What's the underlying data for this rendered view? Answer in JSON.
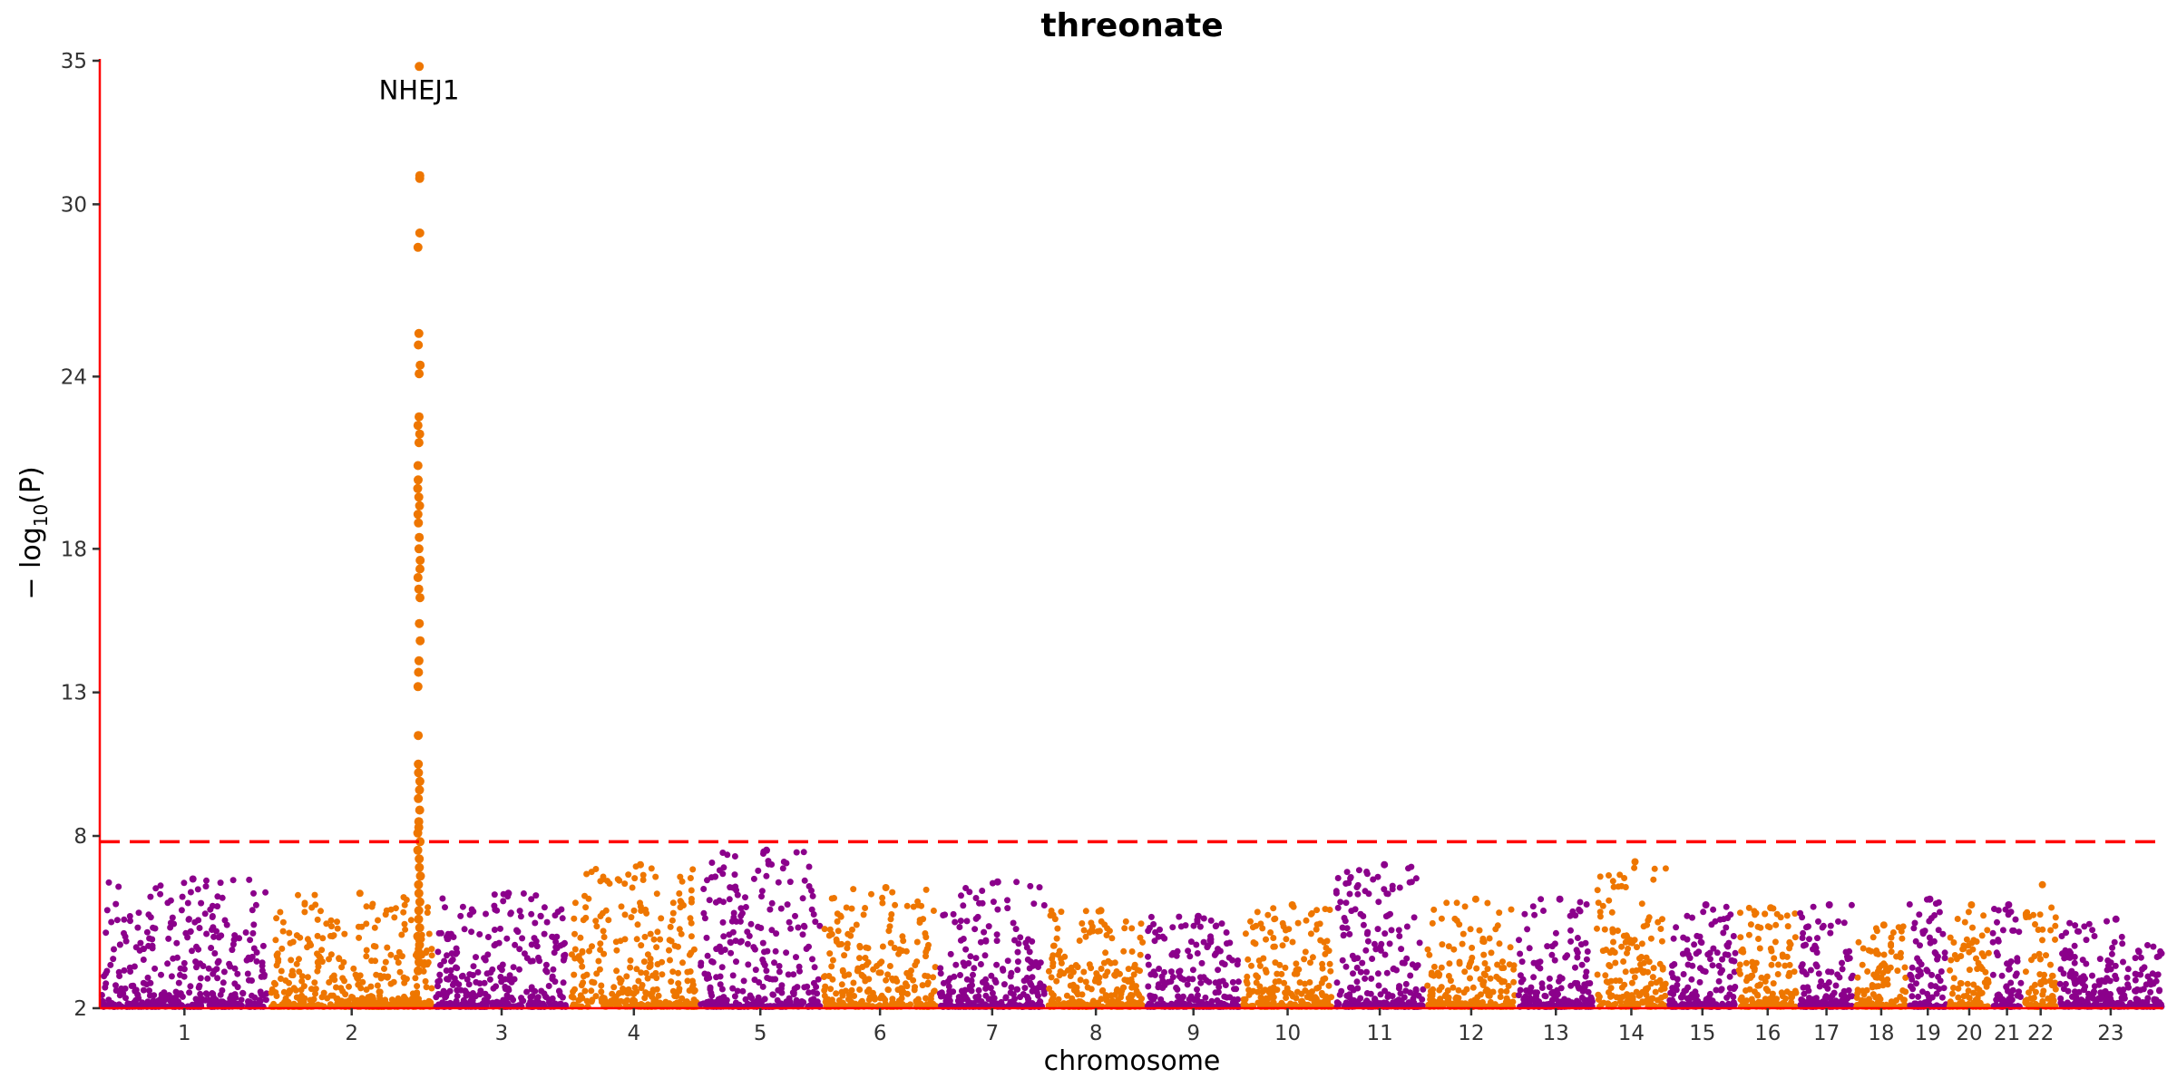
{
  "chart_data": {
    "type": "scatter",
    "subtype": "manhattan",
    "title": "threonate",
    "xlabel": "chromosome",
    "ylabel": "− log10(P)",
    "ylim": [
      2,
      35
    ],
    "yticks": [
      2,
      8,
      13,
      18,
      24,
      30,
      35
    ],
    "grid": false,
    "legend": "none",
    "colors": {
      "odd": "#8B008B",
      "even": "#EE7600",
      "axis": "#FF0000",
      "threshold": "#FF0000"
    },
    "threshold": 7.8,
    "chromosomes": [
      {
        "label": "1",
        "max": 6.5
      },
      {
        "label": "2",
        "max": 6.0
      },
      {
        "label": "3",
        "max": 6.0
      },
      {
        "label": "4",
        "max": 7.0
      },
      {
        "label": "5",
        "max": 7.5
      },
      {
        "label": "6",
        "max": 6.2
      },
      {
        "label": "7",
        "max": 6.4
      },
      {
        "label": "8",
        "max": 5.4
      },
      {
        "label": "9",
        "max": 5.2
      },
      {
        "label": "10",
        "max": 5.6
      },
      {
        "label": "11",
        "max": 7.0
      },
      {
        "label": "12",
        "max": 5.8
      },
      {
        "label": "13",
        "max": 5.8
      },
      {
        "label": "14",
        "max": 7.1
      },
      {
        "label": "15",
        "max": 5.6
      },
      {
        "label": "16",
        "max": 5.5
      },
      {
        "label": "17",
        "max": 5.6
      },
      {
        "label": "18",
        "max": 4.9
      },
      {
        "label": "19",
        "max": 5.8
      },
      {
        "label": "20",
        "max": 5.6
      },
      {
        "label": "21",
        "max": 5.6
      },
      {
        "label": "22",
        "max": 6.3
      },
      {
        "label": "23",
        "max": 5.1
      }
    ],
    "peak": {
      "chromosome": "2",
      "label": "NHEJ1",
      "values": [
        34.8,
        31.0,
        30.9,
        29.0,
        28.5,
        25.5,
        25.1,
        24.4,
        24.1,
        22.6,
        22.3,
        22.0,
        21.7,
        20.9,
        20.4,
        20.1,
        19.8,
        19.5,
        19.2,
        18.9,
        18.4,
        18.0,
        17.6,
        17.3,
        17.0,
        16.6,
        16.3,
        15.4,
        14.8,
        14.1,
        13.7,
        13.2,
        11.5,
        10.5,
        10.2,
        9.9,
        9.6,
        9.3,
        8.9,
        8.5,
        8.3,
        8.1,
        7.8,
        7.5,
        7.2,
        6.9,
        6.6,
        6.3,
        6.0,
        5.7,
        5.4,
        5.1,
        4.8,
        4.5,
        4.2,
        3.9,
        3.6,
        3.3
      ]
    }
  }
}
